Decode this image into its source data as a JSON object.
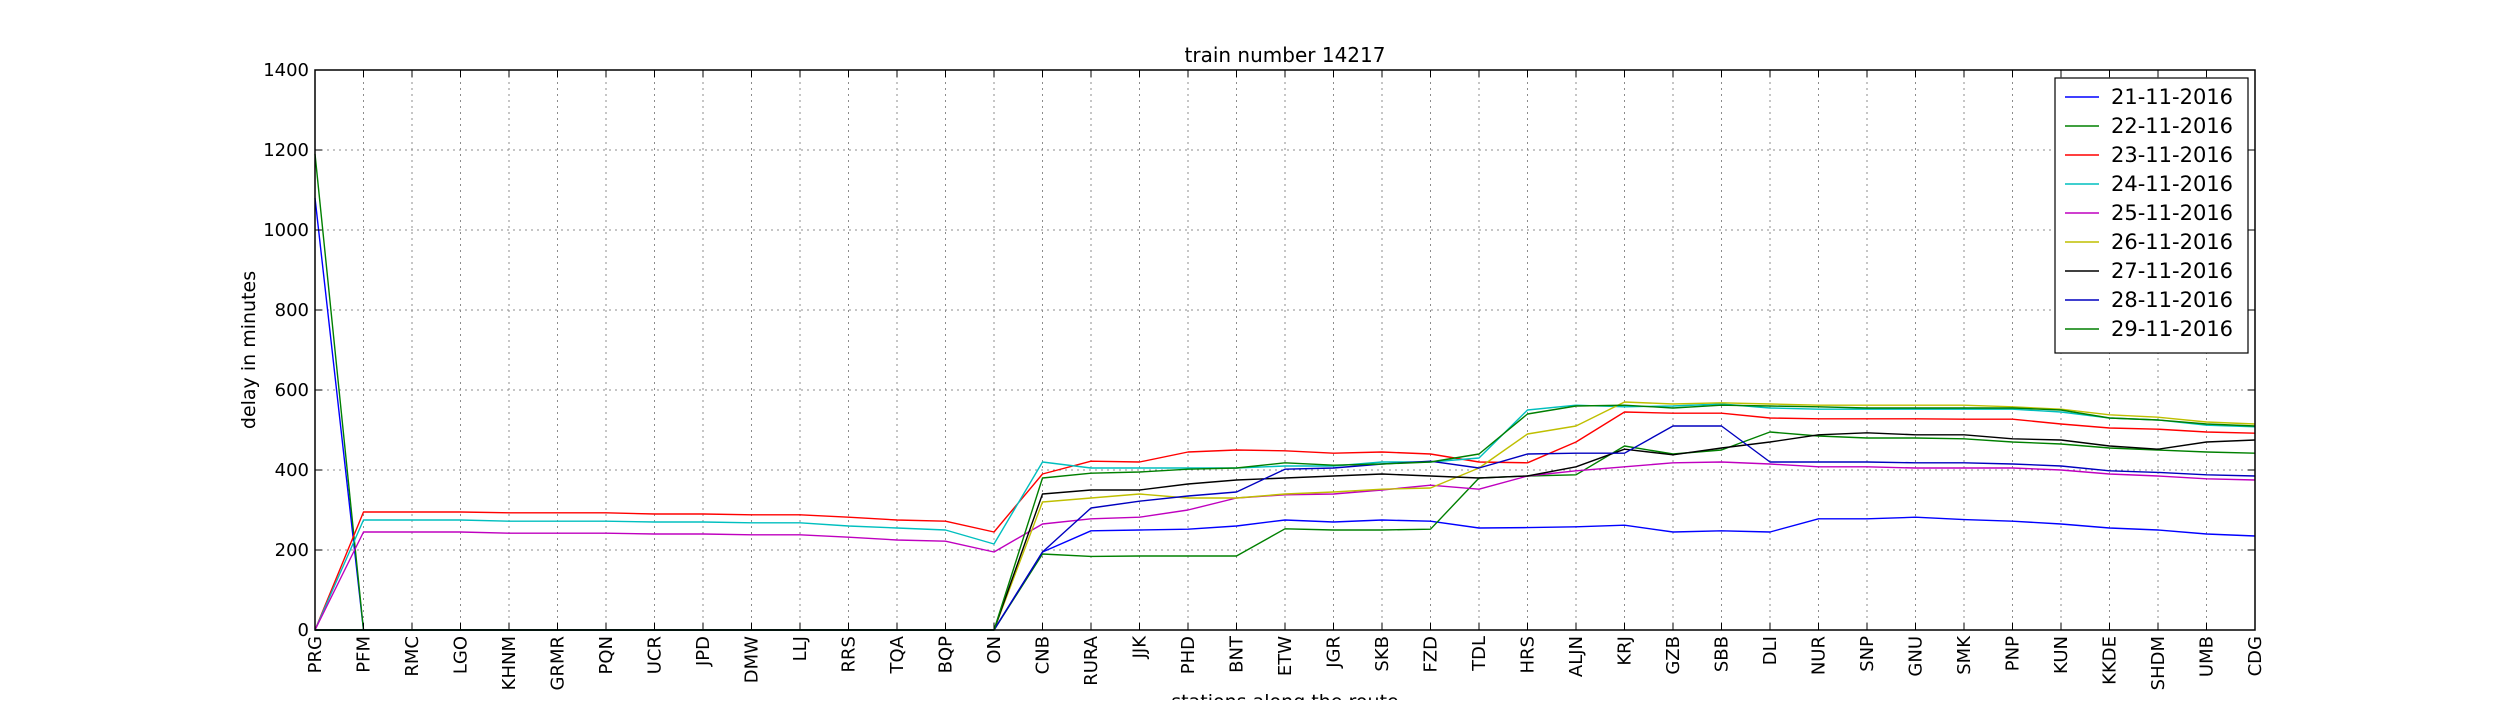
{
  "chart_data": {
    "type": "line",
    "title": "train number 14217",
    "xlabel": "stations along the route",
    "ylabel": "delay in minutes",
    "ylim": [
      0,
      1400
    ],
    "yticks": [
      0,
      200,
      400,
      600,
      800,
      1000,
      1200,
      1400
    ],
    "grid": true,
    "legend_position": "top-right",
    "categories": [
      "PRG",
      "PFM",
      "RMC",
      "LGO",
      "KHNM",
      "GRMR",
      "PQN",
      "UCR",
      "JPD",
      "DMW",
      "LLJ",
      "RRS",
      "TQA",
      "BQP",
      "ON",
      "CNB",
      "RURA",
      "JJK",
      "PHD",
      "BNT",
      "ETW",
      "JGR",
      "SKB",
      "FZD",
      "TDL",
      "HRS",
      "ALJN",
      "KRJ",
      "GZB",
      "SBB",
      "DLI",
      "NUR",
      "SNP",
      "GNU",
      "SMK",
      "PNP",
      "KUN",
      "KKDE",
      "SHDM",
      "UMB",
      "CDG"
    ],
    "series": [
      {
        "name": "21-11-2016",
        "color": "#0000ff",
        "values": [
          1080,
          0,
          0,
          0,
          0,
          0,
          0,
          0,
          0,
          0,
          0,
          0,
          0,
          0,
          0,
          195,
          248,
          250,
          252,
          260,
          275,
          270,
          275,
          272,
          255,
          256,
          258,
          262,
          245,
          248,
          245,
          278,
          278,
          282,
          276,
          272,
          265,
          255,
          250,
          240,
          235
        ]
      },
      {
        "name": "22-11-2016",
        "color": "#008000",
        "values": [
          1190,
          0,
          0,
          0,
          0,
          0,
          0,
          0,
          0,
          0,
          0,
          0,
          0,
          0,
          0,
          190,
          184,
          185,
          185,
          185,
          253,
          250,
          250,
          252,
          380,
          385,
          388,
          460,
          440,
          450,
          495,
          485,
          480,
          480,
          478,
          470,
          465,
          455,
          450,
          445,
          442
        ]
      },
      {
        "name": "23-11-2016",
        "color": "#ff0000",
        "values": [
          0,
          295,
          295,
          295,
          293,
          293,
          293,
          290,
          290,
          288,
          288,
          282,
          275,
          272,
          245,
          390,
          422,
          420,
          445,
          450,
          448,
          442,
          445,
          440,
          420,
          418,
          470,
          545,
          542,
          542,
          530,
          528,
          528,
          528,
          527,
          527,
          515,
          505,
          502,
          495,
          492
        ]
      },
      {
        "name": "24-11-2016",
        "color": "#00bfbf",
        "values": [
          0,
          275,
          275,
          275,
          272,
          272,
          272,
          270,
          270,
          268,
          268,
          260,
          255,
          250,
          215,
          420,
          405,
          405,
          405,
          405,
          410,
          410,
          420,
          420,
          430,
          550,
          562,
          558,
          560,
          565,
          555,
          552,
          552,
          552,
          552,
          552,
          545,
          530,
          525,
          512,
          508
        ]
      },
      {
        "name": "25-11-2016",
        "color": "#bf00bf",
        "values": [
          0,
          245,
          245,
          245,
          242,
          242,
          242,
          240,
          240,
          238,
          238,
          232,
          225,
          222,
          195,
          265,
          278,
          282,
          300,
          330,
          338,
          340,
          350,
          362,
          352,
          385,
          398,
          408,
          418,
          420,
          415,
          408,
          408,
          405,
          405,
          405,
          400,
          390,
          385,
          378,
          375
        ]
      },
      {
        "name": "26-11-2016",
        "color": "#bfbf00",
        "values": [
          0,
          0,
          0,
          0,
          0,
          0,
          0,
          0,
          0,
          0,
          0,
          0,
          0,
          0,
          0,
          320,
          330,
          340,
          330,
          330,
          340,
          345,
          352,
          355,
          405,
          490,
          510,
          570,
          565,
          568,
          565,
          562,
          562,
          562,
          562,
          558,
          552,
          538,
          532,
          520,
          515
        ]
      },
      {
        "name": "27-11-2016",
        "color": "#000000",
        "values": [
          0,
          0,
          0,
          0,
          0,
          0,
          0,
          0,
          0,
          0,
          0,
          0,
          0,
          0,
          0,
          340,
          350,
          350,
          365,
          375,
          380,
          385,
          390,
          385,
          380,
          385,
          408,
          452,
          438,
          455,
          470,
          488,
          493,
          488,
          488,
          478,
          475,
          460,
          452,
          470,
          475
        ]
      },
      {
        "name": "28-11-2016",
        "color": "#0000bf",
        "values": [
          0,
          0,
          0,
          0,
          0,
          0,
          0,
          0,
          0,
          0,
          0,
          0,
          0,
          0,
          0,
          195,
          305,
          322,
          335,
          345,
          402,
          405,
          415,
          422,
          405,
          440,
          442,
          442,
          510,
          510,
          420,
          420,
          420,
          418,
          418,
          415,
          410,
          398,
          394,
          388,
          385
        ]
      },
      {
        "name": "29-11-2016",
        "color": "#007f00",
        "values": [
          0,
          0,
          0,
          0,
          0,
          0,
          0,
          0,
          0,
          0,
          0,
          0,
          0,
          0,
          0,
          380,
          392,
          395,
          402,
          405,
          418,
          412,
          415,
          420,
          440,
          540,
          560,
          562,
          555,
          562,
          560,
          558,
          555,
          555,
          555,
          555,
          550,
          530,
          525,
          515,
          510
        ]
      }
    ]
  }
}
